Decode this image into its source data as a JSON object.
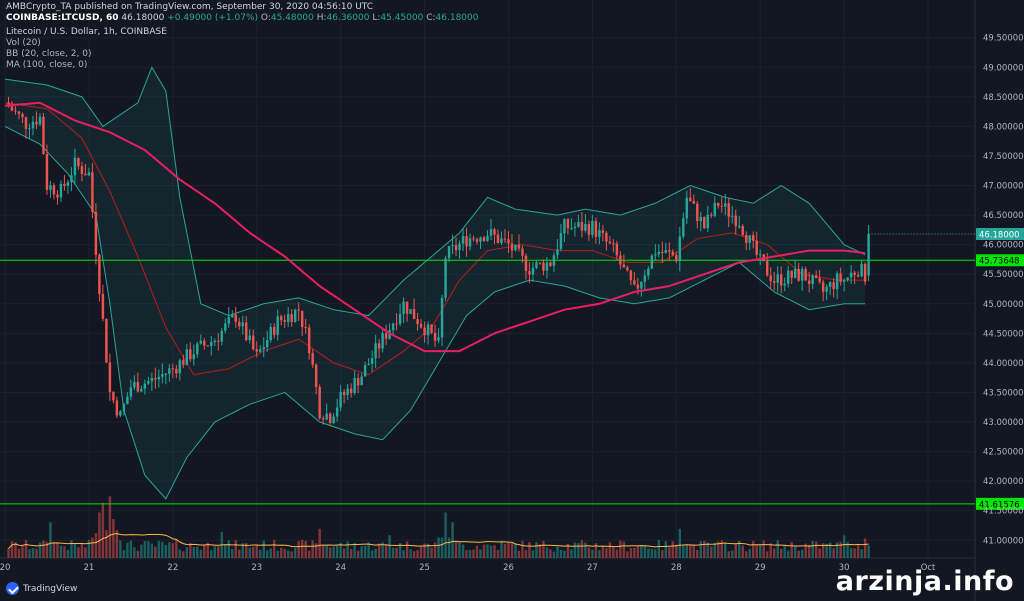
{
  "header": {
    "publisher_line": "AMBCrypto_TA published on TradingView.com, September 30, 2020 04:56:10 UTC",
    "symbol": "COINBASE:LTCUSD, 60",
    "last": "46.18000",
    "change": "+0.49000 (+1.07%)",
    "o_label": "O:",
    "o_value": "45.48000",
    "h_label": "H:",
    "h_value": "46.36000",
    "l_label": "L:",
    "l_value": "45.45000",
    "c_label": "C:",
    "c_value": "46.18000",
    "title": "Litecoin / U.S. Dollar, 1h, COINBASE",
    "indicators": [
      "Vol (20)",
      "BB (20, close, 2, 0)",
      "MA (100, close, 0)"
    ]
  },
  "brand": {
    "label": "TradingView"
  },
  "watermark": "arzinja.info",
  "colors": {
    "background": "#131722",
    "up": "#26a69a",
    "down": "#ef5350",
    "ma100": "#e91e63",
    "bb_band": "#26a69a",
    "bb_basis": "#b71c1c",
    "vol_ma": "#ffb74d",
    "hline": "#00e600"
  },
  "chart_data": {
    "type": "candlestick",
    "title": "Litecoin / U.S. Dollar, 1h, COINBASE",
    "ylim": [
      40.7,
      49.8
    ],
    "y_ticks": [
      "41.00000",
      "41.50000",
      "42.00000",
      "42.50000",
      "43.00000",
      "43.50000",
      "44.00000",
      "44.50000",
      "45.00000",
      "45.50000",
      "46.00000",
      "46.50000",
      "47.00000",
      "47.50000",
      "48.00000",
      "48.50000",
      "49.00000",
      "49.50000"
    ],
    "x_ticks": [
      "20",
      "21",
      "22",
      "23",
      "24",
      "25",
      "26",
      "27",
      "28",
      "29",
      "30",
      "Oct"
    ],
    "x_tick_positions": [
      0,
      24,
      48,
      72,
      96,
      120,
      144,
      168,
      192,
      216,
      240,
      264
    ],
    "x_range_hours": [
      0,
      276
    ],
    "last_price_label": "46.18000",
    "last_price": 46.18,
    "horizontal_levels": [
      {
        "label": "45.73648",
        "value": 45.73648
      },
      {
        "label": "41.61576",
        "value": 41.61576
      }
    ],
    "close_keypoints": [
      [
        0,
        48.4
      ],
      [
        6,
        48.05
      ],
      [
        10,
        48.15
      ],
      [
        12,
        47.0
      ],
      [
        16,
        46.9
      ],
      [
        20,
        47.35
      ],
      [
        24,
        47.2
      ],
      [
        27,
        45.3
      ],
      [
        30,
        43.5
      ],
      [
        33,
        43.1
      ],
      [
        36,
        43.6
      ],
      [
        42,
        43.7
      ],
      [
        48,
        43.9
      ],
      [
        54,
        44.2
      ],
      [
        60,
        44.4
      ],
      [
        66,
        44.8
      ],
      [
        72,
        44.1
      ],
      [
        78,
        44.7
      ],
      [
        84,
        44.9
      ],
      [
        87,
        44.3
      ],
      [
        90,
        43.2
      ],
      [
        93,
        43.1
      ],
      [
        96,
        43.4
      ],
      [
        102,
        43.8
      ],
      [
        108,
        44.4
      ],
      [
        114,
        45.0
      ],
      [
        120,
        44.6
      ],
      [
        124,
        44.3
      ],
      [
        126,
        45.8
      ],
      [
        132,
        46.1
      ],
      [
        138,
        46.2
      ],
      [
        144,
        46.0
      ],
      [
        150,
        45.6
      ],
      [
        156,
        45.7
      ],
      [
        160,
        46.3
      ],
      [
        168,
        46.3
      ],
      [
        174,
        45.9
      ],
      [
        180,
        45.2
      ],
      [
        186,
        45.9
      ],
      [
        192,
        45.8
      ],
      [
        195,
        46.8
      ],
      [
        200,
        46.3
      ],
      [
        204,
        46.7
      ],
      [
        210,
        46.4
      ],
      [
        216,
        45.7
      ],
      [
        220,
        45.4
      ],
      [
        228,
        45.5
      ],
      [
        234,
        45.2
      ],
      [
        238,
        45.4
      ],
      [
        240,
        45.4
      ],
      [
        244,
        45.6
      ],
      [
        246,
        45.48
      ],
      [
        247,
        46.18
      ]
    ],
    "ma100_keypoints": [
      [
        0,
        48.35
      ],
      [
        10,
        48.4
      ],
      [
        20,
        48.1
      ],
      [
        30,
        47.9
      ],
      [
        40,
        47.6
      ],
      [
        50,
        47.1
      ],
      [
        60,
        46.7
      ],
      [
        70,
        46.2
      ],
      [
        80,
        45.8
      ],
      [
        90,
        45.3
      ],
      [
        100,
        44.9
      ],
      [
        110,
        44.5
      ],
      [
        120,
        44.2
      ],
      [
        130,
        44.2
      ],
      [
        140,
        44.5
      ],
      [
        150,
        44.7
      ],
      [
        160,
        44.9
      ],
      [
        170,
        45.0
      ],
      [
        180,
        45.2
      ],
      [
        190,
        45.3
      ],
      [
        200,
        45.5
      ],
      [
        210,
        45.7
      ],
      [
        220,
        45.8
      ],
      [
        230,
        45.9
      ],
      [
        240,
        45.9
      ],
      [
        247,
        45.85
      ]
    ],
    "bb_upper_keypoints": [
      [
        0,
        48.8
      ],
      [
        12,
        48.7
      ],
      [
        22,
        48.5
      ],
      [
        28,
        48.0
      ],
      [
        38,
        48.4
      ],
      [
        42,
        49.0
      ],
      [
        46,
        48.6
      ],
      [
        50,
        46.8
      ],
      [
        56,
        45.0
      ],
      [
        64,
        44.8
      ],
      [
        74,
        45.0
      ],
      [
        84,
        45.1
      ],
      [
        94,
        44.9
      ],
      [
        104,
        44.8
      ],
      [
        114,
        45.4
      ],
      [
        122,
        45.8
      ],
      [
        130,
        46.2
      ],
      [
        138,
        46.8
      ],
      [
        146,
        46.6
      ],
      [
        158,
        46.5
      ],
      [
        166,
        46.6
      ],
      [
        176,
        46.5
      ],
      [
        186,
        46.7
      ],
      [
        196,
        47.0
      ],
      [
        206,
        46.8
      ],
      [
        214,
        46.7
      ],
      [
        222,
        47.0
      ],
      [
        230,
        46.7
      ],
      [
        240,
        46.0
      ],
      [
        247,
        45.8
      ]
    ],
    "bb_lower_keypoints": [
      [
        0,
        48.0
      ],
      [
        10,
        47.7
      ],
      [
        18,
        47.2
      ],
      [
        26,
        46.5
      ],
      [
        30,
        45.0
      ],
      [
        34,
        43.2
      ],
      [
        40,
        42.1
      ],
      [
        46,
        41.7
      ],
      [
        52,
        42.4
      ],
      [
        60,
        43.0
      ],
      [
        70,
        43.3
      ],
      [
        80,
        43.5
      ],
      [
        90,
        43.0
      ],
      [
        100,
        42.8
      ],
      [
        108,
        42.7
      ],
      [
        116,
        43.2
      ],
      [
        124,
        44.0
      ],
      [
        132,
        44.8
      ],
      [
        140,
        45.2
      ],
      [
        150,
        45.4
      ],
      [
        160,
        45.3
      ],
      [
        170,
        45.1
      ],
      [
        180,
        45.0
      ],
      [
        190,
        45.1
      ],
      [
        200,
        45.4
      ],
      [
        210,
        45.7
      ],
      [
        220,
        45.2
      ],
      [
        230,
        44.9
      ],
      [
        240,
        45.0
      ],
      [
        247,
        45.0
      ]
    ],
    "bb_basis_keypoints": [
      [
        0,
        48.4
      ],
      [
        12,
        48.3
      ],
      [
        22,
        47.8
      ],
      [
        30,
        46.9
      ],
      [
        38,
        45.8
      ],
      [
        46,
        44.6
      ],
      [
        54,
        43.8
      ],
      [
        64,
        43.9
      ],
      [
        74,
        44.2
      ],
      [
        84,
        44.4
      ],
      [
        94,
        44.0
      ],
      [
        104,
        43.8
      ],
      [
        114,
        44.2
      ],
      [
        122,
        44.6
      ],
      [
        130,
        45.4
      ],
      [
        138,
        45.9
      ],
      [
        148,
        46.0
      ],
      [
        158,
        45.9
      ],
      [
        168,
        45.9
      ],
      [
        178,
        45.7
      ],
      [
        188,
        45.7
      ],
      [
        198,
        46.1
      ],
      [
        208,
        46.2
      ],
      [
        218,
        46.0
      ],
      [
        228,
        45.5
      ],
      [
        238,
        45.4
      ],
      [
        247,
        45.4
      ]
    ],
    "volume_spikes": [
      [
        13,
        0.55
      ],
      [
        27,
        0.7
      ],
      [
        28,
        0.85
      ],
      [
        30,
        0.95
      ],
      [
        31,
        0.6
      ],
      [
        62,
        0.4
      ],
      [
        90,
        0.45
      ],
      [
        110,
        0.35
      ],
      [
        126,
        0.7
      ],
      [
        128,
        0.55
      ],
      [
        193,
        0.45
      ],
      [
        240,
        0.35
      ],
      [
        246,
        0.3
      ]
    ]
  }
}
